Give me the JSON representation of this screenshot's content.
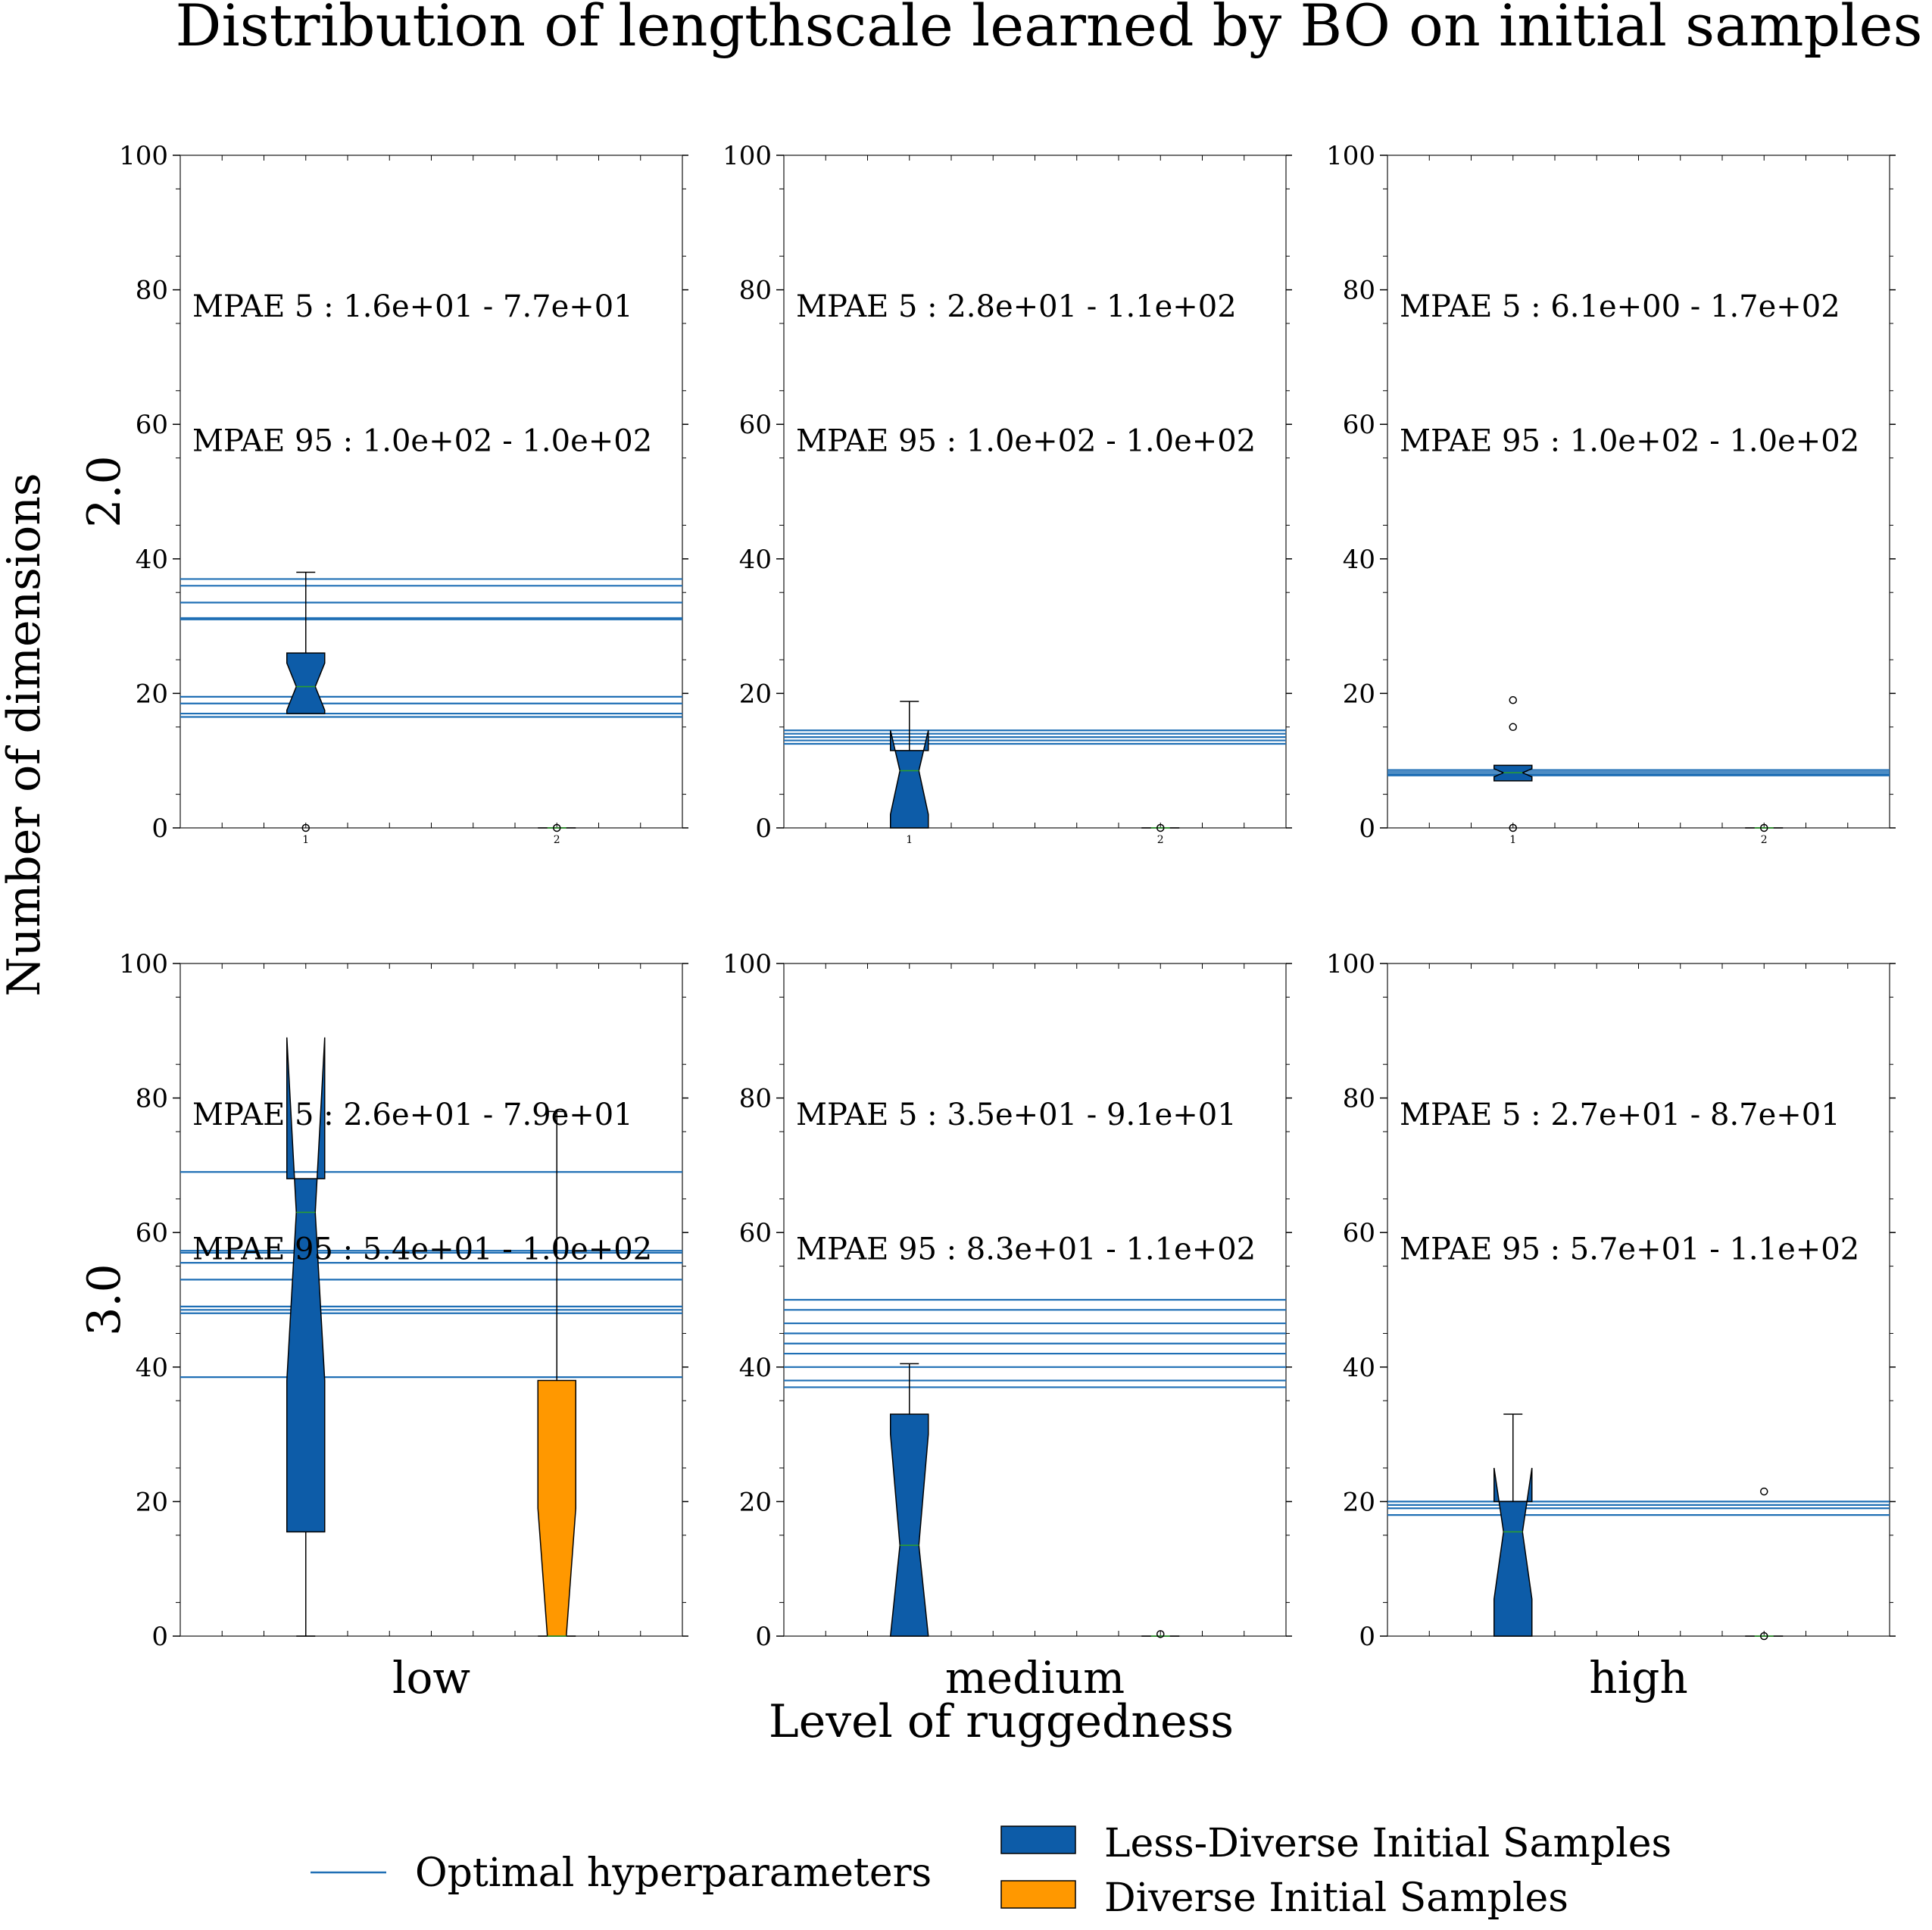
{
  "title": "Distribution of lengthscale learned by BO on initial samples",
  "xlabel": "Level of ruggedness",
  "ylabel": "Number of dimensions",
  "colors": {
    "less_diverse": "#0d5ca8",
    "diverse": "#ff9800",
    "optimal_line": "#1f6fb5",
    "median": "#2ca02c"
  },
  "legend": {
    "optimal": "Optimal hyperparameters",
    "less_diverse": "Less-Diverse Initial Samples",
    "diverse": "Diverse Initial Samples"
  },
  "chart_data": {
    "type": "box",
    "ylim": [
      0,
      100
    ],
    "yticks": [
      0,
      20,
      40,
      60,
      80,
      100
    ],
    "xtick_labels": [
      "1",
      "2"
    ],
    "row_labels": [
      "2.0",
      "3.0"
    ],
    "col_labels": [
      "low",
      "medium",
      "high"
    ],
    "series_names": [
      "Less-Diverse Initial Samples",
      "Diverse Initial Samples"
    ],
    "panels": [
      {
        "row": 0,
        "col": 0,
        "annot1": "MPAE 5 : 1.6e+01 - 7.7e+01",
        "annot2": "MPAE 95 : 1.0e+02 - 1.0e+02",
        "optimal_lines": [
          16.5,
          17,
          18.5,
          19.5,
          31,
          31.2,
          33.5,
          36,
          37
        ],
        "boxes": [
          {
            "pos": 1,
            "series": 0,
            "q1": 17,
            "median": 21,
            "q3": 26,
            "whislo": 17,
            "whishi": 38,
            "notchlo": 17.5,
            "notchhi": 24.5,
            "fliers": [
              0
            ]
          },
          {
            "pos": 2,
            "series": 1,
            "q1": 0,
            "median": 0,
            "q3": 0,
            "whislo": 0,
            "whishi": 0,
            "notchlo": 0,
            "notchhi": 0,
            "fliers": [
              0
            ]
          }
        ]
      },
      {
        "row": 0,
        "col": 1,
        "annot1": "MPAE 5 : 2.8e+01 - 1.1e+02",
        "annot2": "MPAE 95 : 1.0e+02 - 1.0e+02",
        "optimal_lines": [
          12.5,
          13,
          13.5,
          14,
          14.5
        ],
        "boxes": [
          {
            "pos": 1,
            "series": 0,
            "q1": 0,
            "median": 8.5,
            "q3": 11.5,
            "whislo": 0,
            "whishi": 18.8,
            "notchlo": 2,
            "notchhi": 14.5,
            "fliers": []
          },
          {
            "pos": 2,
            "series": 1,
            "q1": 0,
            "median": 0,
            "q3": 0,
            "whislo": 0,
            "whishi": 0,
            "notchlo": 0,
            "notchhi": 0,
            "fliers": [
              0
            ]
          }
        ]
      },
      {
        "row": 0,
        "col": 2,
        "annot1": "MPAE 5 : 6.1e+00 - 1.7e+02",
        "annot2": "MPAE 95 : 1.0e+02 - 1.0e+02",
        "optimal_lines": [
          7.8,
          8,
          8.3,
          8.6
        ],
        "boxes": [
          {
            "pos": 1,
            "series": 0,
            "q1": 7,
            "median": 8.2,
            "q3": 9.3,
            "whislo": 7,
            "whishi": 9.3,
            "notchlo": 7.6,
            "notchhi": 8.8,
            "fliers": [
              0,
              15,
              19
            ]
          },
          {
            "pos": 2,
            "series": 1,
            "q1": 0,
            "median": 0,
            "q3": 0,
            "whislo": 0,
            "whishi": 0,
            "notchlo": 0,
            "notchhi": 0,
            "fliers": [
              0
            ]
          }
        ]
      },
      {
        "row": 1,
        "col": 0,
        "annot1": "MPAE 5 : 2.6e+01 - 7.9e+01",
        "annot2": "MPAE 95 : 5.4e+01 - 1.0e+02",
        "optimal_lines": [
          38.5,
          48,
          48.5,
          49,
          53,
          55.5,
          57,
          57.3,
          69
        ],
        "boxes": [
          {
            "pos": 1,
            "series": 0,
            "q1": 15.5,
            "median": 63,
            "q3": 68,
            "whislo": 0,
            "whishi": 68,
            "notchlo": 38,
            "notchhi": 89,
            "fliers": []
          },
          {
            "pos": 2,
            "series": 1,
            "q1": 0,
            "median": 0,
            "q3": 38,
            "whislo": 0,
            "whishi": 78,
            "notchlo": 0,
            "notchhi": 19,
            "fliers": []
          }
        ]
      },
      {
        "row": 1,
        "col": 1,
        "annot1": "MPAE 5 : 3.5e+01 - 9.1e+01",
        "annot2": "MPAE 95 : 8.3e+01 - 1.1e+02",
        "optimal_lines": [
          37,
          38,
          40,
          42,
          43.5,
          45,
          46.5,
          48.5,
          50
        ],
        "boxes": [
          {
            "pos": 1,
            "series": 0,
            "q1": 0,
            "median": 13.5,
            "q3": 33,
            "whislo": 0,
            "whishi": 40.5,
            "notchlo": 0,
            "notchhi": 30,
            "fliers": []
          },
          {
            "pos": 2,
            "series": 1,
            "q1": 0,
            "median": 0,
            "q3": 0,
            "whislo": 0,
            "whishi": 0,
            "notchlo": 0,
            "notchhi": 0,
            "fliers": [
              0.3
            ]
          }
        ]
      },
      {
        "row": 1,
        "col": 2,
        "annot1": "MPAE 5 : 2.7e+01 - 8.7e+01",
        "annot2": "MPAE 95 : 5.7e+01 - 1.1e+02",
        "optimal_lines": [
          18,
          19,
          19.5,
          20
        ],
        "boxes": [
          {
            "pos": 1,
            "series": 0,
            "q1": 0,
            "median": 15.5,
            "q3": 20,
            "whislo": 0,
            "whishi": 33,
            "notchlo": 5.5,
            "notchhi": 25,
            "fliers": []
          },
          {
            "pos": 2,
            "series": 1,
            "q1": 0,
            "median": 0,
            "q3": 0,
            "whislo": 0,
            "whishi": 0,
            "notchlo": 0,
            "notchhi": 0,
            "fliers": [
              0,
              21.5
            ]
          }
        ]
      }
    ]
  }
}
